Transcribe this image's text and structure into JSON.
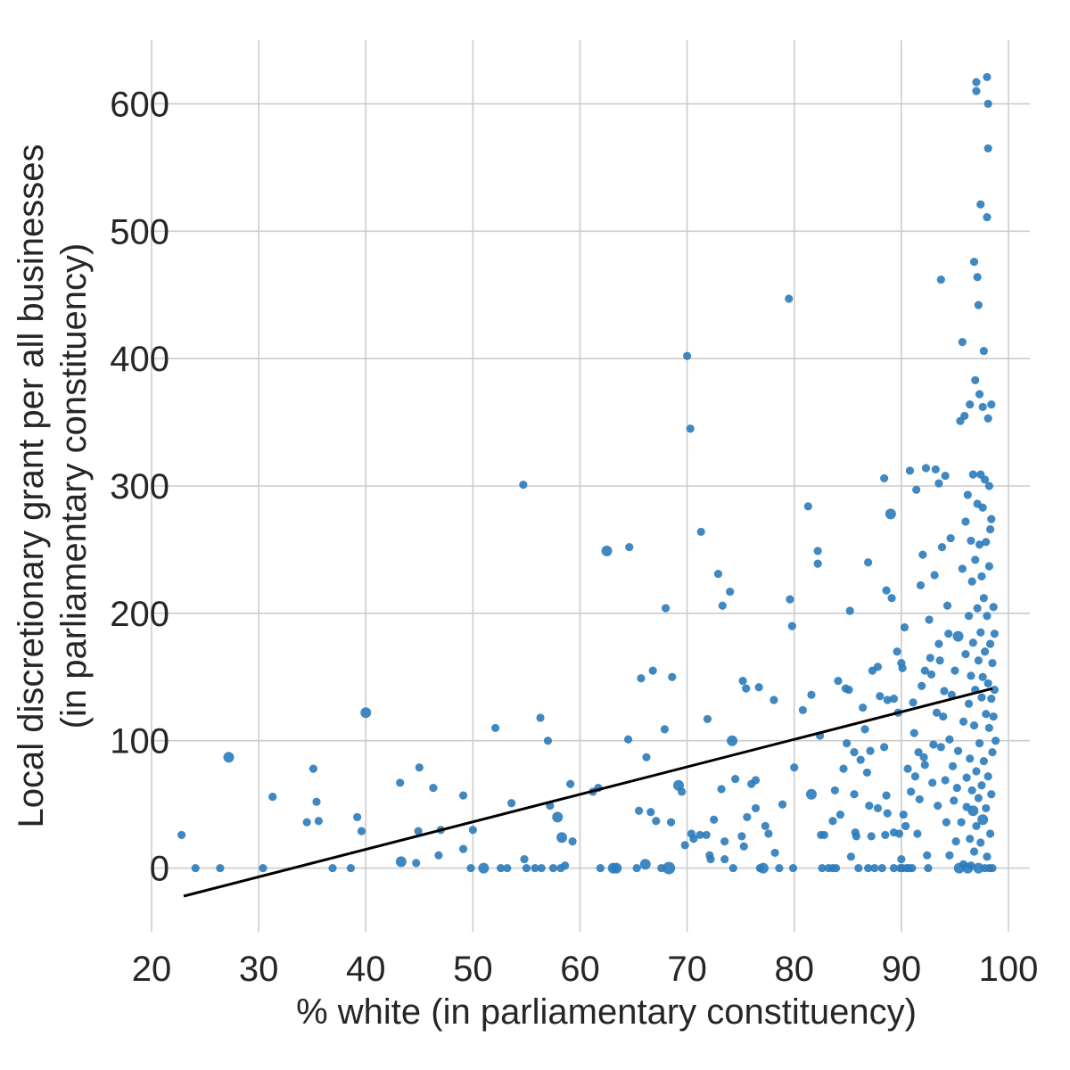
{
  "chart_data": {
    "type": "scatter",
    "title": "",
    "xlabel": "% white (in parliamentary constituency)",
    "ylabel_lines": [
      "Local discretionary grant per all businesses",
      "(in parliamentary constituency)"
    ],
    "xlim": [
      20,
      102
    ],
    "ylim": [
      -50,
      650
    ],
    "x_ticks": [
      20,
      30,
      40,
      50,
      60,
      70,
      80,
      90,
      100
    ],
    "y_ticks": [
      0,
      100,
      200,
      300,
      400,
      500,
      600
    ],
    "x_tick_labels": [
      "20",
      "30",
      "40",
      "50",
      "60",
      "70",
      "80",
      "90",
      "100"
    ],
    "y_tick_labels": [
      "0",
      "100",
      "200",
      "300",
      "400",
      "500",
      "600"
    ],
    "grid": true,
    "legend": "none",
    "point_color": "#2b7bba",
    "line_color": "#000000",
    "regression_line": {
      "x": [
        23,
        98.5
      ],
      "y": [
        -22,
        141
      ]
    },
    "points": [
      {
        "x": 22.8,
        "y": 26
      },
      {
        "x": 24.1,
        "y": 0
      },
      {
        "x": 26.4,
        "y": 0
      },
      {
        "x": 27.2,
        "y": 87,
        "s": 6
      },
      {
        "x": 30.4,
        "y": 0
      },
      {
        "x": 31.3,
        "y": 56
      },
      {
        "x": 34.5,
        "y": 36
      },
      {
        "x": 35.1,
        "y": 78
      },
      {
        "x": 35.4,
        "y": 52
      },
      {
        "x": 35.6,
        "y": 37
      },
      {
        "x": 36.9,
        "y": 0
      },
      {
        "x": 38.6,
        "y": 0
      },
      {
        "x": 39.2,
        "y": 40
      },
      {
        "x": 39.6,
        "y": 29
      },
      {
        "x": 40.0,
        "y": 122,
        "s": 6
      },
      {
        "x": 43.2,
        "y": 67
      },
      {
        "x": 43.3,
        "y": 5,
        "s": 6
      },
      {
        "x": 44.7,
        "y": 4
      },
      {
        "x": 44.9,
        "y": 29
      },
      {
        "x": 45.0,
        "y": 79
      },
      {
        "x": 46.3,
        "y": 63
      },
      {
        "x": 46.8,
        "y": 10
      },
      {
        "x": 47.0,
        "y": 30
      },
      {
        "x": 49.1,
        "y": 57
      },
      {
        "x": 49.1,
        "y": 15
      },
      {
        "x": 49.8,
        "y": 0
      },
      {
        "x": 50.0,
        "y": 30
      },
      {
        "x": 51.0,
        "y": 0,
        "s": 6
      },
      {
        "x": 52.1,
        "y": 110
      },
      {
        "x": 52.6,
        "y": 0
      },
      {
        "x": 53.2,
        "y": 0
      },
      {
        "x": 53.6,
        "y": 51
      },
      {
        "x": 54.7,
        "y": 301
      },
      {
        "x": 54.8,
        "y": 7
      },
      {
        "x": 55.0,
        "y": 0
      },
      {
        "x": 55.8,
        "y": 0
      },
      {
        "x": 56.3,
        "y": 118
      },
      {
        "x": 56.4,
        "y": 0
      },
      {
        "x": 57.0,
        "y": 100
      },
      {
        "x": 57.2,
        "y": 49
      },
      {
        "x": 57.5,
        "y": 0
      },
      {
        "x": 57.9,
        "y": 40,
        "s": 6
      },
      {
        "x": 58.2,
        "y": 0
      },
      {
        "x": 58.3,
        "y": 24,
        "s": 6
      },
      {
        "x": 58.6,
        "y": 2
      },
      {
        "x": 59.1,
        "y": 66
      },
      {
        "x": 59.3,
        "y": 21
      },
      {
        "x": 61.2,
        "y": 60
      },
      {
        "x": 61.7,
        "y": 63
      },
      {
        "x": 61.9,
        "y": 0
      },
      {
        "x": 62.5,
        "y": 249,
        "s": 6
      },
      {
        "x": 63.1,
        "y": 0,
        "s": 6
      },
      {
        "x": 63.4,
        "y": 0,
        "s": 6
      },
      {
        "x": 64.5,
        "y": 101
      },
      {
        "x": 64.6,
        "y": 252
      },
      {
        "x": 65.3,
        "y": 0
      },
      {
        "x": 65.5,
        "y": 45
      },
      {
        "x": 65.7,
        "y": 149
      },
      {
        "x": 66.1,
        "y": 3,
        "s": 6
      },
      {
        "x": 66.2,
        "y": 87
      },
      {
        "x": 66.6,
        "y": 44
      },
      {
        "x": 66.8,
        "y": 155
      },
      {
        "x": 67.1,
        "y": 37
      },
      {
        "x": 67.6,
        "y": 0
      },
      {
        "x": 67.9,
        "y": 109
      },
      {
        "x": 68.0,
        "y": 204
      },
      {
        "x": 68.3,
        "y": 0,
        "s": 7
      },
      {
        "x": 68.5,
        "y": 36
      },
      {
        "x": 68.6,
        "y": 150
      },
      {
        "x": 69.2,
        "y": 65,
        "s": 6
      },
      {
        "x": 69.5,
        "y": 60
      },
      {
        "x": 69.8,
        "y": 18
      },
      {
        "x": 70.0,
        "y": 402
      },
      {
        "x": 70.3,
        "y": 345
      },
      {
        "x": 70.4,
        "y": 27
      },
      {
        "x": 70.6,
        "y": 23
      },
      {
        "x": 71.2,
        "y": 26
      },
      {
        "x": 71.3,
        "y": 264
      },
      {
        "x": 71.8,
        "y": 26
      },
      {
        "x": 71.9,
        "y": 117
      },
      {
        "x": 72.1,
        "y": 10
      },
      {
        "x": 72.2,
        "y": 7
      },
      {
        "x": 72.5,
        "y": 38
      },
      {
        "x": 72.9,
        "y": 231
      },
      {
        "x": 73.2,
        "y": 62
      },
      {
        "x": 73.3,
        "y": 206
      },
      {
        "x": 73.5,
        "y": 21
      },
      {
        "x": 73.5,
        "y": 7
      },
      {
        "x": 74.0,
        "y": 217
      },
      {
        "x": 74.2,
        "y": 100,
        "s": 6
      },
      {
        "x": 74.3,
        "y": 0
      },
      {
        "x": 74.5,
        "y": 70
      },
      {
        "x": 75.1,
        "y": 25
      },
      {
        "x": 75.2,
        "y": 147
      },
      {
        "x": 75.3,
        "y": 17
      },
      {
        "x": 75.5,
        "y": 141
      },
      {
        "x": 75.6,
        "y": 40
      },
      {
        "x": 76.0,
        "y": 66
      },
      {
        "x": 76.4,
        "y": 47
      },
      {
        "x": 76.4,
        "y": 69
      },
      {
        "x": 76.7,
        "y": 142
      },
      {
        "x": 76.8,
        "y": 0
      },
      {
        "x": 77.1,
        "y": 0,
        "s": 6
      },
      {
        "x": 77.3,
        "y": 33
      },
      {
        "x": 77.6,
        "y": 27
      },
      {
        "x": 78.1,
        "y": 132
      },
      {
        "x": 78.2,
        "y": 12
      },
      {
        "x": 78.6,
        "y": 0
      },
      {
        "x": 78.9,
        "y": 50
      },
      {
        "x": 79.5,
        "y": 447
      },
      {
        "x": 79.6,
        "y": 211
      },
      {
        "x": 79.8,
        "y": 190
      },
      {
        "x": 79.9,
        "y": 0
      },
      {
        "x": 80.0,
        "y": 79
      },
      {
        "x": 80.8,
        "y": 124
      },
      {
        "x": 81.3,
        "y": 284
      },
      {
        "x": 81.6,
        "y": 136
      },
      {
        "x": 81.6,
        "y": 58,
        "s": 6
      },
      {
        "x": 82.2,
        "y": 249
      },
      {
        "x": 82.2,
        "y": 239
      },
      {
        "x": 82.4,
        "y": 104
      },
      {
        "x": 82.5,
        "y": 26
      },
      {
        "x": 82.6,
        "y": 0
      },
      {
        "x": 82.8,
        "y": 26
      },
      {
        "x": 83.2,
        "y": 0
      },
      {
        "x": 83.6,
        "y": 37
      },
      {
        "x": 83.6,
        "y": 0
      },
      {
        "x": 83.8,
        "y": 61
      },
      {
        "x": 83.9,
        "y": 0
      },
      {
        "x": 84.1,
        "y": 147
      },
      {
        "x": 84.3,
        "y": 42
      },
      {
        "x": 84.6,
        "y": 78
      },
      {
        "x": 84.8,
        "y": 141
      },
      {
        "x": 84.9,
        "y": 98
      },
      {
        "x": 85.1,
        "y": 140
      },
      {
        "x": 85.2,
        "y": 202
      },
      {
        "x": 85.3,
        "y": 9
      },
      {
        "x": 85.6,
        "y": 91
      },
      {
        "x": 85.6,
        "y": 58
      },
      {
        "x": 85.7,
        "y": 28
      },
      {
        "x": 85.8,
        "y": 25
      },
      {
        "x": 86.0,
        "y": 0
      },
      {
        "x": 86.2,
        "y": 85
      },
      {
        "x": 86.4,
        "y": 126
      },
      {
        "x": 86.6,
        "y": 109
      },
      {
        "x": 86.8,
        "y": 75
      },
      {
        "x": 86.9,
        "y": 240
      },
      {
        "x": 86.9,
        "y": 0
      },
      {
        "x": 87.0,
        "y": 49
      },
      {
        "x": 87.1,
        "y": 92
      },
      {
        "x": 87.2,
        "y": 25
      },
      {
        "x": 87.3,
        "y": 155
      },
      {
        "x": 87.5,
        "y": 0
      },
      {
        "x": 87.8,
        "y": 158
      },
      {
        "x": 87.8,
        "y": 47
      },
      {
        "x": 88.0,
        "y": 135
      },
      {
        "x": 88.2,
        "y": 0
      },
      {
        "x": 88.4,
        "y": 306
      },
      {
        "x": 88.4,
        "y": 95
      },
      {
        "x": 88.5,
        "y": 26
      },
      {
        "x": 88.6,
        "y": 218
      },
      {
        "x": 88.6,
        "y": 57
      },
      {
        "x": 88.7,
        "y": 43
      },
      {
        "x": 88.7,
        "y": 132
      },
      {
        "x": 89.0,
        "y": 278,
        "s": 6
      },
      {
        "x": 89.1,
        "y": 212
      },
      {
        "x": 89.3,
        "y": 133
      },
      {
        "x": 89.3,
        "y": 28
      },
      {
        "x": 89.3,
        "y": 0
      },
      {
        "x": 89.6,
        "y": 170
      },
      {
        "x": 89.7,
        "y": 122
      },
      {
        "x": 89.8,
        "y": 27
      },
      {
        "x": 89.9,
        "y": 0
      },
      {
        "x": 90.0,
        "y": 161
      },
      {
        "x": 90.0,
        "y": 7
      },
      {
        "x": 90.1,
        "y": 157
      },
      {
        "x": 90.1,
        "y": 0
      },
      {
        "x": 90.2,
        "y": 42
      },
      {
        "x": 90.3,
        "y": 189
      },
      {
        "x": 90.4,
        "y": 33
      },
      {
        "x": 90.5,
        "y": 0
      },
      {
        "x": 90.6,
        "y": 78
      },
      {
        "x": 90.7,
        "y": 0
      },
      {
        "x": 90.8,
        "y": 312
      },
      {
        "x": 90.9,
        "y": 60
      },
      {
        "x": 91.0,
        "y": 0
      },
      {
        "x": 91.1,
        "y": 130
      },
      {
        "x": 91.2,
        "y": 106
      },
      {
        "x": 91.3,
        "y": 72
      },
      {
        "x": 91.4,
        "y": 297
      },
      {
        "x": 91.5,
        "y": 27
      },
      {
        "x": 91.6,
        "y": 91
      },
      {
        "x": 91.7,
        "y": 54
      },
      {
        "x": 91.8,
        "y": 222
      },
      {
        "x": 91.9,
        "y": 143
      },
      {
        "x": 92.0,
        "y": 246
      },
      {
        "x": 92.1,
        "y": 87
      },
      {
        "x": 92.2,
        "y": 155
      },
      {
        "x": 92.2,
        "y": 81
      },
      {
        "x": 92.3,
        "y": 314
      },
      {
        "x": 92.4,
        "y": 10
      },
      {
        "x": 92.5,
        "y": 0
      },
      {
        "x": 92.6,
        "y": 195
      },
      {
        "x": 92.7,
        "y": 165
      },
      {
        "x": 92.8,
        "y": 152
      },
      {
        "x": 92.9,
        "y": 67
      },
      {
        "x": 93.0,
        "y": 97
      },
      {
        "x": 93.1,
        "y": 230
      },
      {
        "x": 93.2,
        "y": 313
      },
      {
        "x": 93.3,
        "y": 122
      },
      {
        "x": 93.4,
        "y": 49
      },
      {
        "x": 93.5,
        "y": 302
      },
      {
        "x": 93.5,
        "y": 176
      },
      {
        "x": 93.6,
        "y": 163
      },
      {
        "x": 93.7,
        "y": 462
      },
      {
        "x": 93.7,
        "y": 95
      },
      {
        "x": 93.8,
        "y": 252
      },
      {
        "x": 93.9,
        "y": 119
      },
      {
        "x": 94.0,
        "y": 139
      },
      {
        "x": 94.1,
        "y": 308
      },
      {
        "x": 94.1,
        "y": 69
      },
      {
        "x": 94.2,
        "y": 36
      },
      {
        "x": 94.3,
        "y": 206
      },
      {
        "x": 94.4,
        "y": 184
      },
      {
        "x": 94.5,
        "y": 101
      },
      {
        "x": 94.5,
        "y": 10
      },
      {
        "x": 94.6,
        "y": 259
      },
      {
        "x": 94.7,
        "y": 136
      },
      {
        "x": 94.8,
        "y": 80
      },
      {
        "x": 94.9,
        "y": 53
      },
      {
        "x": 95.0,
        "y": 155
      },
      {
        "x": 95.1,
        "y": 21
      },
      {
        "x": 95.2,
        "y": 63
      },
      {
        "x": 95.3,
        "y": 182,
        "s": 6
      },
      {
        "x": 95.3,
        "y": 92
      },
      {
        "x": 95.4,
        "y": 0,
        "s": 6
      },
      {
        "x": 95.5,
        "y": 351
      },
      {
        "x": 95.6,
        "y": 36
      },
      {
        "x": 95.7,
        "y": 413
      },
      {
        "x": 95.7,
        "y": 235
      },
      {
        "x": 95.8,
        "y": 115
      },
      {
        "x": 95.8,
        "y": 3
      },
      {
        "x": 95.9,
        "y": 355
      },
      {
        "x": 96.0,
        "y": 272
      },
      {
        "x": 96.0,
        "y": 168
      },
      {
        "x": 96.1,
        "y": 71
      },
      {
        "x": 96.1,
        "y": 48
      },
      {
        "x": 96.2,
        "y": 0,
        "s": 6
      },
      {
        "x": 96.2,
        "y": 293
      },
      {
        "x": 96.3,
        "y": 198
      },
      {
        "x": 96.3,
        "y": 129
      },
      {
        "x": 96.4,
        "y": 364
      },
      {
        "x": 96.4,
        "y": 86
      },
      {
        "x": 96.4,
        "y": 23
      },
      {
        "x": 96.5,
        "y": 257
      },
      {
        "x": 96.5,
        "y": 151
      },
      {
        "x": 96.5,
        "y": 2
      },
      {
        "x": 96.6,
        "y": 225
      },
      {
        "x": 96.6,
        "y": 61
      },
      {
        "x": 96.7,
        "y": 309
      },
      {
        "x": 96.7,
        "y": 177
      },
      {
        "x": 96.7,
        "y": 45,
        "s": 6
      },
      {
        "x": 96.8,
        "y": 476
      },
      {
        "x": 96.8,
        "y": 112
      },
      {
        "x": 96.8,
        "y": 13
      },
      {
        "x": 96.9,
        "y": 383
      },
      {
        "x": 96.9,
        "y": 242
      },
      {
        "x": 96.9,
        "y": 140
      },
      {
        "x": 97.0,
        "y": 610
      },
      {
        "x": 97.0,
        "y": 617
      },
      {
        "x": 97.0,
        "y": 76
      },
      {
        "x": 97.0,
        "y": 33
      },
      {
        "x": 97.1,
        "y": 464
      },
      {
        "x": 97.1,
        "y": 286
      },
      {
        "x": 97.1,
        "y": 204
      },
      {
        "x": 97.2,
        "y": 442
      },
      {
        "x": 97.2,
        "y": 163
      },
      {
        "x": 97.2,
        "y": 55
      },
      {
        "x": 97.2,
        "y": 0,
        "s": 6
      },
      {
        "x": 97.3,
        "y": 372
      },
      {
        "x": 97.3,
        "y": 254
      },
      {
        "x": 97.3,
        "y": 98
      },
      {
        "x": 97.4,
        "y": 521
      },
      {
        "x": 97.4,
        "y": 309
      },
      {
        "x": 97.4,
        "y": 185
      },
      {
        "x": 97.4,
        "y": 20
      },
      {
        "x": 97.5,
        "y": 229
      },
      {
        "x": 97.5,
        "y": 134
      },
      {
        "x": 97.5,
        "y": 65
      },
      {
        "x": 97.6,
        "y": 362
      },
      {
        "x": 97.6,
        "y": 283
      },
      {
        "x": 97.6,
        "y": 150
      },
      {
        "x": 97.6,
        "y": 38,
        "s": 6
      },
      {
        "x": 97.7,
        "y": 406
      },
      {
        "x": 97.7,
        "y": 212
      },
      {
        "x": 97.7,
        "y": 84
      },
      {
        "x": 97.8,
        "y": 305
      },
      {
        "x": 97.8,
        "y": 170
      },
      {
        "x": 97.8,
        "y": 0
      },
      {
        "x": 97.9,
        "y": 256
      },
      {
        "x": 97.9,
        "y": 121
      },
      {
        "x": 97.9,
        "y": 47
      },
      {
        "x": 98.0,
        "y": 621
      },
      {
        "x": 98.0,
        "y": 511
      },
      {
        "x": 98.0,
        "y": 198
      },
      {
        "x": 98.0,
        "y": 9
      },
      {
        "x": 98.1,
        "y": 600
      },
      {
        "x": 98.1,
        "y": 565
      },
      {
        "x": 98.1,
        "y": 353
      },
      {
        "x": 98.1,
        "y": 145
      },
      {
        "x": 98.1,
        "y": 72
      },
      {
        "x": 98.2,
        "y": 300
      },
      {
        "x": 98.2,
        "y": 237
      },
      {
        "x": 98.2,
        "y": 110
      },
      {
        "x": 98.2,
        "y": 0
      },
      {
        "x": 98.3,
        "y": 266
      },
      {
        "x": 98.3,
        "y": 176
      },
      {
        "x": 98.3,
        "y": 27
      },
      {
        "x": 98.4,
        "y": 364
      },
      {
        "x": 98.4,
        "y": 274
      },
      {
        "x": 98.4,
        "y": 133
      },
      {
        "x": 98.4,
        "y": 58
      },
      {
        "x": 98.5,
        "y": 161
      },
      {
        "x": 98.5,
        "y": 91
      },
      {
        "x": 98.5,
        "y": 0
      },
      {
        "x": 98.6,
        "y": 205
      },
      {
        "x": 98.6,
        "y": 119
      },
      {
        "x": 98.7,
        "y": 184
      },
      {
        "x": 98.7,
        "y": 140
      },
      {
        "x": 98.8,
        "y": 100
      }
    ]
  }
}
